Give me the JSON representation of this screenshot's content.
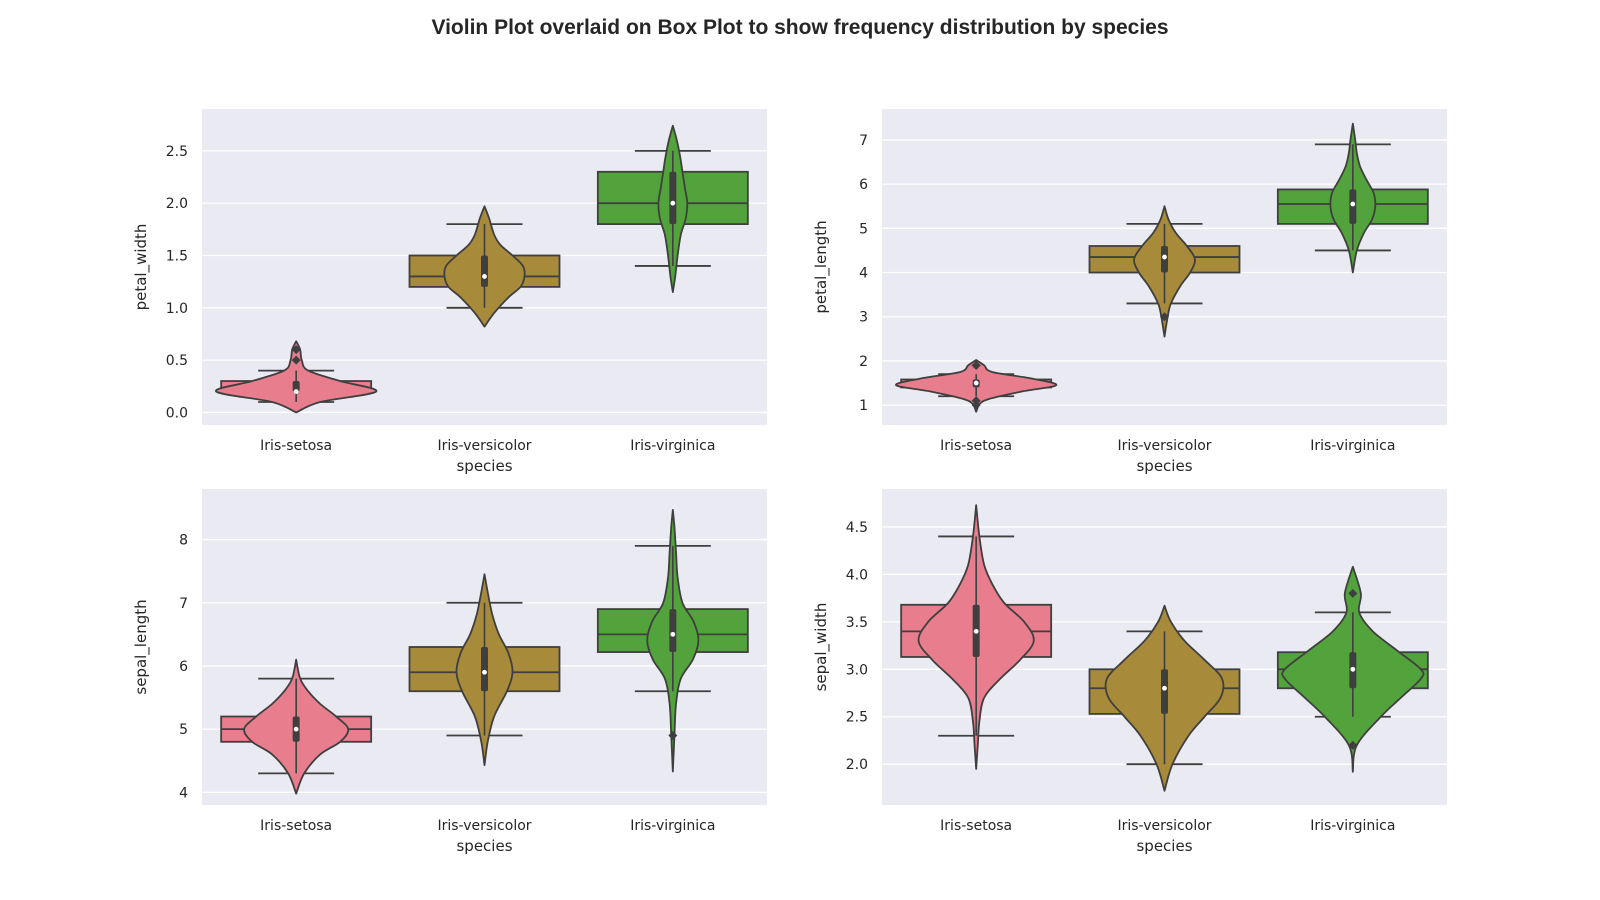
{
  "title": "Violin Plot overlaid on Box Plot to show frequency distribution by species",
  "colors": {
    "background": "#EAEAF2",
    "grid": "#FFFFFF",
    "line": "#3F3F3F",
    "Iris-setosa": "#E87D8E",
    "Iris-versicolor": "#A78A3A",
    "Iris-virginica": "#52A33C"
  },
  "chart_data": [
    {
      "type": "violin",
      "title": "",
      "xlabel": "species",
      "ylabel": "petal_width",
      "categories": [
        "Iris-setosa",
        "Iris-versicolor",
        "Iris-virginica"
      ],
      "ylim": [
        -0.12,
        2.9
      ],
      "yticks": [
        0.0,
        0.5,
        1.0,
        1.5,
        2.0,
        2.5
      ],
      "ytick_labels": [
        "0.0",
        "0.5",
        "1.0",
        "1.5",
        "2.0",
        "2.5"
      ],
      "grid": true,
      "box": [
        {
          "whisker_low": 0.1,
          "q1": 0.2,
          "median": 0.2,
          "q3": 0.3,
          "whisker_high": 0.4,
          "outliers": [
            0.5,
            0.6
          ]
        },
        {
          "whisker_low": 1.0,
          "q1": 1.2,
          "median": 1.3,
          "q3": 1.5,
          "whisker_high": 1.8,
          "outliers": []
        },
        {
          "whisker_low": 1.4,
          "q1": 1.8,
          "median": 2.0,
          "q3": 2.3,
          "whisker_high": 2.5,
          "outliers": []
        }
      ],
      "violin": [
        {
          "y": [
            0.0,
            0.1,
            0.2,
            0.3,
            0.4,
            0.5,
            0.6,
            0.68
          ],
          "w": [
            0.0,
            0.3,
            1.0,
            0.55,
            0.15,
            0.07,
            0.05,
            0.0
          ]
        },
        {
          "y": [
            0.82,
            0.95,
            1.1,
            1.2,
            1.3,
            1.4,
            1.5,
            1.6,
            1.7,
            1.85,
            1.97
          ],
          "w": [
            0.0,
            0.12,
            0.3,
            0.45,
            0.5,
            0.48,
            0.35,
            0.2,
            0.12,
            0.06,
            0.0
          ]
        },
        {
          "y": [
            1.15,
            1.3,
            1.5,
            1.7,
            1.85,
            2.0,
            2.15,
            2.3,
            2.45,
            2.6,
            2.74
          ],
          "w": [
            0.0,
            0.03,
            0.06,
            0.1,
            0.16,
            0.18,
            0.15,
            0.12,
            0.09,
            0.05,
            0.0
          ]
        }
      ]
    },
    {
      "type": "violin",
      "title": "",
      "xlabel": "species",
      "ylabel": "petal_length",
      "categories": [
        "Iris-setosa",
        "Iris-versicolor",
        "Iris-virginica"
      ],
      "ylim": [
        0.55,
        7.7
      ],
      "yticks": [
        1,
        2,
        3,
        4,
        5,
        6,
        7
      ],
      "ytick_labels": [
        "1",
        "2",
        "3",
        "4",
        "5",
        "6",
        "7"
      ],
      "grid": true,
      "box": [
        {
          "whisker_low": 1.2,
          "q1": 1.4,
          "median": 1.5,
          "q3": 1.58,
          "whisker_high": 1.7,
          "outliers": [
            1.0,
            1.1,
            1.9,
            1.9
          ]
        },
        {
          "whisker_low": 3.3,
          "q1": 4.0,
          "median": 4.35,
          "q3": 4.6,
          "whisker_high": 5.1,
          "outliers": [
            3.0
          ]
        },
        {
          "whisker_low": 4.5,
          "q1": 5.1,
          "median": 5.55,
          "q3": 5.88,
          "whisker_high": 6.9,
          "outliers": []
        }
      ],
      "violin": [
        {
          "y": [
            0.85,
            1.1,
            1.3,
            1.45,
            1.6,
            1.75,
            1.9,
            2.02
          ],
          "w": [
            0.0,
            0.1,
            0.55,
            1.0,
            0.7,
            0.2,
            0.1,
            0.0
          ]
        },
        {
          "y": [
            2.55,
            3.0,
            3.3,
            3.7,
            4.0,
            4.3,
            4.6,
            4.9,
            5.2,
            5.5
          ],
          "w": [
            0.0,
            0.04,
            0.08,
            0.2,
            0.32,
            0.38,
            0.28,
            0.14,
            0.05,
            0.0
          ]
        },
        {
          "y": [
            4.0,
            4.5,
            4.9,
            5.2,
            5.5,
            5.8,
            6.1,
            6.4,
            6.7,
            7.0,
            7.37
          ],
          "w": [
            0.0,
            0.05,
            0.14,
            0.24,
            0.28,
            0.26,
            0.17,
            0.09,
            0.05,
            0.03,
            0.0
          ]
        }
      ]
    },
    {
      "type": "violin",
      "title": "",
      "xlabel": "species",
      "ylabel": "sepal_length",
      "categories": [
        "Iris-setosa",
        "Iris-versicolor",
        "Iris-virginica"
      ],
      "ylim": [
        3.8,
        8.8
      ],
      "yticks": [
        4,
        5,
        6,
        7,
        8
      ],
      "ytick_labels": [
        "4",
        "5",
        "6",
        "7",
        "8"
      ],
      "grid": true,
      "box": [
        {
          "whisker_low": 4.3,
          "q1": 4.8,
          "median": 5.0,
          "q3": 5.2,
          "whisker_high": 5.8,
          "outliers": []
        },
        {
          "whisker_low": 4.9,
          "q1": 5.6,
          "median": 5.9,
          "q3": 6.3,
          "whisker_high": 7.0,
          "outliers": []
        },
        {
          "whisker_low": 5.6,
          "q1": 6.22,
          "median": 6.5,
          "q3": 6.9,
          "whisker_high": 7.9,
          "outliers": [
            4.9
          ]
        }
      ],
      "violin": [
        {
          "y": [
            3.98,
            4.3,
            4.6,
            4.8,
            5.0,
            5.2,
            5.4,
            5.6,
            5.8,
            6.1
          ],
          "w": [
            0.0,
            0.1,
            0.3,
            0.55,
            0.65,
            0.5,
            0.3,
            0.15,
            0.05,
            0.0
          ]
        },
        {
          "y": [
            4.43,
            4.8,
            5.2,
            5.6,
            5.9,
            6.2,
            6.5,
            6.8,
            7.1,
            7.45
          ],
          "w": [
            0.0,
            0.04,
            0.12,
            0.28,
            0.35,
            0.3,
            0.18,
            0.1,
            0.05,
            0.0
          ]
        },
        {
          "y": [
            4.33,
            4.9,
            5.4,
            5.8,
            6.1,
            6.4,
            6.7,
            7.0,
            7.4,
            7.8,
            8.2,
            8.47
          ],
          "w": [
            0.0,
            0.02,
            0.04,
            0.1,
            0.25,
            0.32,
            0.26,
            0.12,
            0.06,
            0.04,
            0.02,
            0.0
          ]
        }
      ]
    },
    {
      "type": "violin",
      "title": "",
      "xlabel": "species",
      "ylabel": "sepal_width",
      "categories": [
        "Iris-setosa",
        "Iris-versicolor",
        "Iris-virginica"
      ],
      "ylim": [
        1.57,
        4.9
      ],
      "yticks": [
        2.0,
        2.5,
        3.0,
        3.5,
        4.0,
        4.5
      ],
      "ytick_labels": [
        "2.0",
        "2.5",
        "3.0",
        "3.5",
        "4.0",
        "4.5"
      ],
      "grid": true,
      "box": [
        {
          "whisker_low": 2.3,
          "q1": 3.13,
          "median": 3.4,
          "q3": 3.68,
          "whisker_high": 4.4,
          "outliers": []
        },
        {
          "whisker_low": 2.0,
          "q1": 2.53,
          "median": 2.8,
          "q3": 3.0,
          "whisker_high": 3.4,
          "outliers": []
        },
        {
          "whisker_low": 2.5,
          "q1": 2.8,
          "median": 3.0,
          "q3": 3.18,
          "whisker_high": 3.6,
          "outliers": [
            2.2,
            3.8
          ]
        }
      ],
      "violin": [
        {
          "y": [
            1.95,
            2.2,
            2.45,
            2.7,
            2.9,
            3.1,
            3.3,
            3.5,
            3.7,
            3.9,
            4.1,
            4.4,
            4.73
          ],
          "w": [
            0.0,
            0.02,
            0.04,
            0.1,
            0.3,
            0.55,
            0.72,
            0.6,
            0.35,
            0.2,
            0.1,
            0.04,
            0.0
          ]
        },
        {
          "y": [
            1.72,
            2.0,
            2.3,
            2.5,
            2.7,
            2.9,
            3.1,
            3.3,
            3.5,
            3.67
          ],
          "w": [
            0.0,
            0.1,
            0.3,
            0.5,
            0.7,
            0.72,
            0.5,
            0.25,
            0.08,
            0.0
          ]
        },
        {
          "y": [
            1.92,
            2.2,
            2.5,
            2.7,
            2.9,
            3.0,
            3.2,
            3.4,
            3.6,
            3.8,
            4.08
          ],
          "w": [
            0.0,
            0.05,
            0.35,
            0.6,
            0.85,
            0.85,
            0.55,
            0.25,
            0.08,
            0.1,
            0.0
          ]
        }
      ]
    }
  ]
}
